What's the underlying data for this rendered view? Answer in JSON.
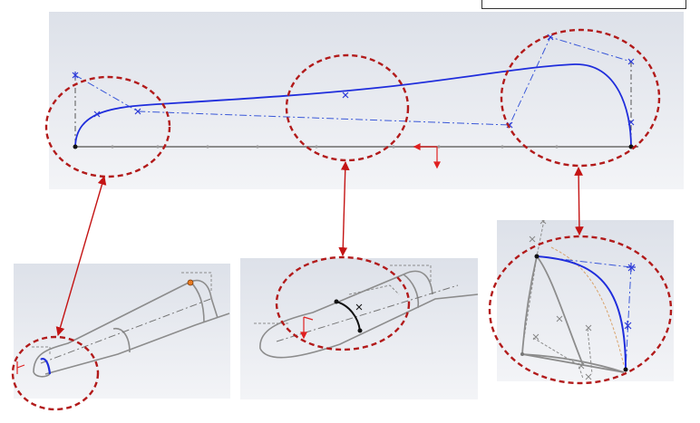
{
  "figure": {
    "description_free": true,
    "colors": {
      "panel_gradient_top": "#e3e6ec",
      "panel_gradient_bottom": "#f4f5f8",
      "spline": "#1f2ddc",
      "construction": "#3a58d8",
      "sketch_gray": "#8c8c8c",
      "highlight_circle": "#b21a1a",
      "connector_arrow": "#c41414",
      "point": "#111111",
      "control_point": "#2a38d8",
      "axis_red": "#e02020",
      "selected_point": "#e87a22"
    },
    "panels": [
      "main-profile-sketch",
      "nose-detail",
      "mid-section-detail",
      "tail-detail"
    ],
    "highlight_circles": 6,
    "connectors": 3
  }
}
